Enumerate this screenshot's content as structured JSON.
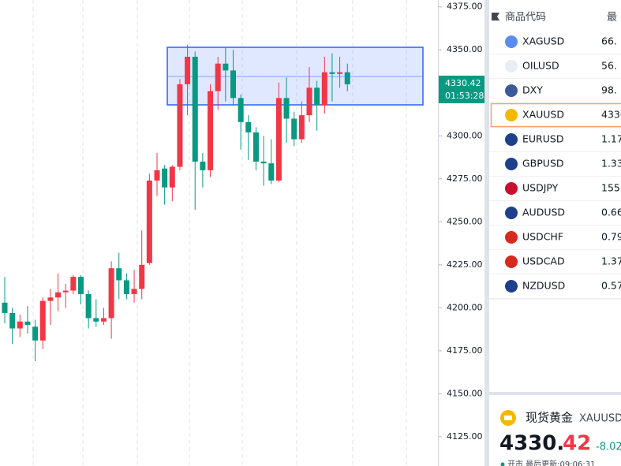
{
  "chart": {
    "type": "candlestick",
    "up_color": "#f23645",
    "down_color": "#089981",
    "ylim": [
      4108,
      4379
    ],
    "yticks": [
      {
        "value": 4375,
        "label": "4375.00"
      },
      {
        "value": 4350,
        "label": "4350.00"
      },
      {
        "value": 4325,
        "label": "4325.00"
      },
      {
        "value": 4300,
        "label": "4300.00"
      },
      {
        "value": 4275,
        "label": "4275.00"
      },
      {
        "value": 4250,
        "label": "4250.00"
      },
      {
        "value": 4225,
        "label": "4225.00"
      },
      {
        "value": 4200,
        "label": "4200.00"
      },
      {
        "value": 4175,
        "label": "4175.00"
      },
      {
        "value": 4150,
        "label": "4150.00"
      },
      {
        "value": 4125,
        "label": "4125.00"
      }
    ],
    "candles": [
      {
        "open": 4203,
        "high": 4218,
        "low": 4191,
        "close": 4197
      },
      {
        "open": 4197,
        "high": 4200,
        "low": 4179,
        "close": 4188
      },
      {
        "open": 4188,
        "high": 4196,
        "low": 4183,
        "close": 4192
      },
      {
        "open": 4192,
        "high": 4201,
        "low": 4185,
        "close": 4190
      },
      {
        "open": 4189,
        "high": 4193,
        "low": 4169,
        "close": 4181
      },
      {
        "open": 4181,
        "high": 4206,
        "low": 4176,
        "close": 4204
      },
      {
        "open": 4204,
        "high": 4211,
        "low": 4190,
        "close": 4206
      },
      {
        "open": 4206,
        "high": 4220,
        "low": 4198,
        "close": 4209
      },
      {
        "open": 4209,
        "high": 4214,
        "low": 4200,
        "close": 4210
      },
      {
        "open": 4210,
        "high": 4219,
        "low": 4208,
        "close": 4218
      },
      {
        "open": 4218,
        "high": 4219,
        "low": 4202,
        "close": 4208
      },
      {
        "open": 4208,
        "high": 4210,
        "low": 4188,
        "close": 4194
      },
      {
        "open": 4194,
        "high": 4205,
        "low": 4189,
        "close": 4192
      },
      {
        "open": 4192,
        "high": 4200,
        "low": 4190,
        "close": 4194
      },
      {
        "open": 4194,
        "high": 4227,
        "low": 4182,
        "close": 4223
      },
      {
        "open": 4223,
        "high": 4232,
        "low": 4205,
        "close": 4216
      },
      {
        "open": 4216,
        "high": 4220,
        "low": 4205,
        "close": 4208
      },
      {
        "open": 4208,
        "high": 4222,
        "low": 4203,
        "close": 4211
      },
      {
        "open": 4211,
        "high": 4245,
        "low": 4205,
        "close": 4225
      },
      {
        "open": 4226,
        "high": 4278,
        "low": 4225,
        "close": 4274
      },
      {
        "open": 4274,
        "high": 4290,
        "low": 4265,
        "close": 4280
      },
      {
        "open": 4281,
        "high": 4283,
        "low": 4260,
        "close": 4270
      },
      {
        "open": 4270,
        "high": 4283,
        "low": 4262,
        "close": 4282
      },
      {
        "open": 4282,
        "high": 4333,
        "low": 4280,
        "close": 4330
      },
      {
        "open": 4330,
        "high": 4353,
        "low": 4312,
        "close": 4346
      },
      {
        "open": 4346,
        "high": 4349,
        "low": 4257,
        "close": 4285
      },
      {
        "open": 4285,
        "high": 4290,
        "low": 4270,
        "close": 4280
      },
      {
        "open": 4280,
        "high": 4330,
        "low": 4276,
        "close": 4326
      },
      {
        "open": 4326,
        "high": 4346,
        "low": 4315,
        "close": 4342
      },
      {
        "open": 4342,
        "high": 4351,
        "low": 4320,
        "close": 4338
      },
      {
        "open": 4338,
        "high": 4350,
        "low": 4318,
        "close": 4322
      },
      {
        "open": 4322,
        "high": 4324,
        "low": 4292,
        "close": 4308
      },
      {
        "open": 4308,
        "high": 4312,
        "low": 4286,
        "close": 4302
      },
      {
        "open": 4302,
        "high": 4305,
        "low": 4280,
        "close": 4285
      },
      {
        "open": 4285,
        "high": 4300,
        "low": 4271,
        "close": 4284
      },
      {
        "open": 4284,
        "high": 4298,
        "low": 4272,
        "close": 4274
      },
      {
        "open": 4274,
        "high": 4331,
        "low": 4273,
        "close": 4322
      },
      {
        "open": 4322,
        "high": 4334,
        "low": 4296,
        "close": 4310
      },
      {
        "open": 4310,
        "high": 4314,
        "low": 4294,
        "close": 4298
      },
      {
        "open": 4298,
        "high": 4320,
        "low": 4296,
        "close": 4312
      },
      {
        "open": 4312,
        "high": 4340,
        "low": 4308,
        "close": 4328
      },
      {
        "open": 4328,
        "high": 4332,
        "low": 4303,
        "close": 4318
      },
      {
        "open": 4318,
        "high": 4346,
        "low": 4313,
        "close": 4337
      },
      {
        "open": 4337,
        "high": 4348,
        "low": 4320,
        "close": 4336
      },
      {
        "open": 4336,
        "high": 4346,
        "low": 4328,
        "close": 4337
      },
      {
        "open": 4337,
        "high": 4342,
        "low": 4326,
        "close": 4330
      }
    ],
    "price_label": {
      "value": 4330.42,
      "countdown": "01:53:28"
    }
  },
  "watchlist": {
    "header": [
      "商品代码",
      "最"
    ],
    "rows": [
      {
        "symbol": "XAGUSD",
        "price": "66."
      },
      {
        "symbol": "OILUSD",
        "price": "56."
      },
      {
        "symbol": "DXY",
        "price": "98."
      },
      {
        "symbol": "XAUUSD",
        "price": "4330"
      },
      {
        "symbol": "EURUSD",
        "price": "1.17"
      },
      {
        "symbol": "GBPUSD",
        "price": "1.33"
      },
      {
        "symbol": "USDJPY",
        "price": "155."
      },
      {
        "symbol": "AUDUSD",
        "price": "0.66"
      },
      {
        "symbol": "USDCHF",
        "price": "0.79"
      },
      {
        "symbol": "USDCAD",
        "price": "1.37"
      },
      {
        "symbol": "NZDUSD",
        "price": "0.57"
      }
    ]
  },
  "detail": {
    "name": "现货黄金",
    "symbol": "XAUUSD",
    "price_int": "4330.",
    "price_dec": "42",
    "change": "-8.02",
    "status": "开市 最后更新:09:06:31"
  }
}
